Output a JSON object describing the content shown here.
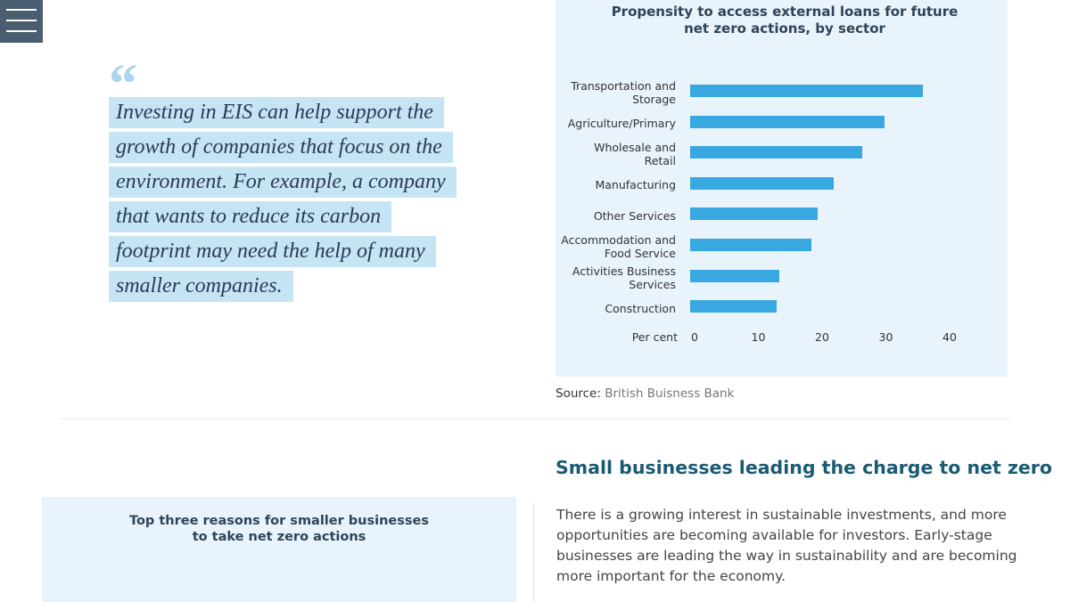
{
  "quote": {
    "mark": "“",
    "text": "Investing in EIS can help support the growth of companies that focus on the environment. For example, a company that wants to reduce its carbon footprint may need the help of many smaller companies."
  },
  "chart_data": {
    "type": "bar",
    "orientation": "horizontal",
    "title": "Propensity to access external loans for future net zero actions, by sector",
    "categories": [
      "Transportation and Storage",
      "Agriculture/Primary",
      "Wholesale and Retail",
      "Manufacturing",
      "Other Services",
      "Accommodation and Food Service",
      "Activities Business Services",
      "Construction"
    ],
    "values": [
      36.5,
      30.5,
      27,
      22.5,
      20,
      19,
      14,
      13.5
    ],
    "color": "#3aa8e0",
    "x_label": "Per cent",
    "xlim": [
      0,
      40
    ],
    "xticks": [
      0,
      10,
      20,
      30,
      40
    ],
    "grid": false
  },
  "source": {
    "label": "Source:",
    "text": "British Buisness Bank"
  },
  "section": {
    "heading": "Small businesses leading the charge to net zero",
    "paragraph": "There is a growing interest in sustainable investments, and more opportunities are becoming available for investors. Early-stage businesses are leading the way in sustainability and are becoming more important for the economy."
  },
  "side_box": {
    "title": "Top three reasons for smaller businesses to take net zero actions"
  }
}
